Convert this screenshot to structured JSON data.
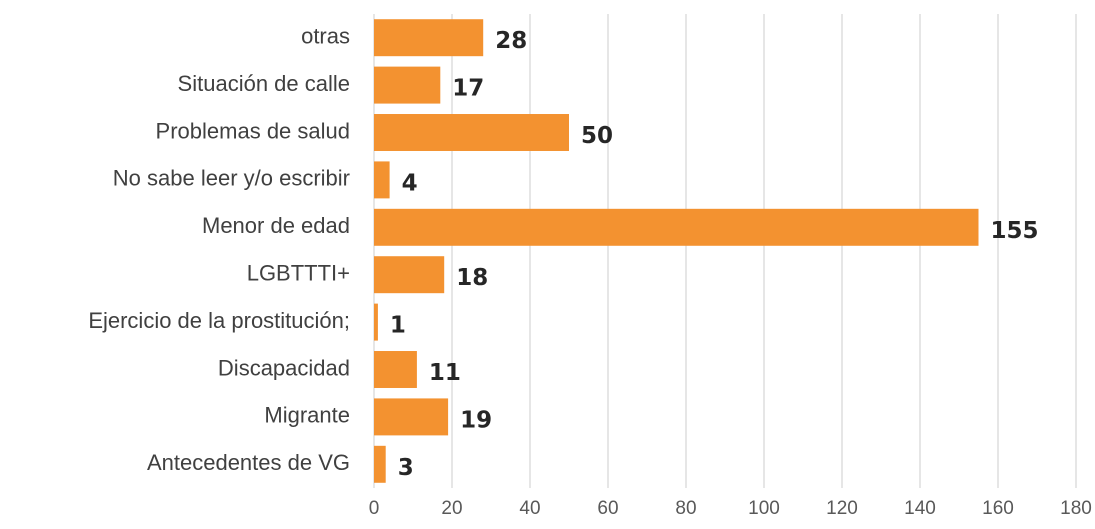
{
  "chart_data": {
    "type": "bar",
    "orientation": "horizontal",
    "categories": [
      "otras",
      "Situación de calle",
      "Problemas de salud",
      "No sabe leer y/o escribir",
      "Menor de edad",
      "LGBTTTI+",
      "Ejercicio de la prostitución;",
      "Discapacidad",
      "Migrante",
      "Antecedentes de VG"
    ],
    "values": [
      28,
      17,
      50,
      4,
      155,
      18,
      1,
      11,
      19,
      3
    ],
    "color": "#f39230",
    "xlim": [
      0,
      180
    ],
    "xticks": [
      0,
      20,
      40,
      60,
      80,
      100,
      120,
      140,
      160,
      180
    ],
    "grid": true
  }
}
